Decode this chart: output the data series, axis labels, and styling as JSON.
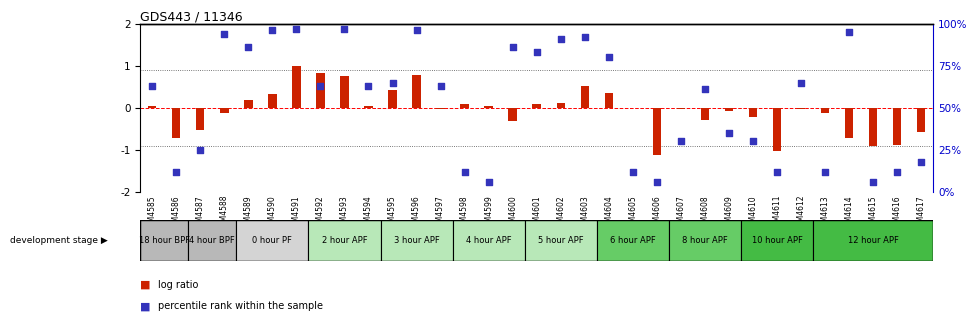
{
  "title": "GDS443 / 11346",
  "samples": [
    "GSM4585",
    "GSM4586",
    "GSM4587",
    "GSM4588",
    "GSM4589",
    "GSM4590",
    "GSM4591",
    "GSM4592",
    "GSM4593",
    "GSM4594",
    "GSM4595",
    "GSM4596",
    "GSM4597",
    "GSM4598",
    "GSM4599",
    "GSM4600",
    "GSM4601",
    "GSM4602",
    "GSM4603",
    "GSM4604",
    "GSM4605",
    "GSM4606",
    "GSM4607",
    "GSM4608",
    "GSM4609",
    "GSM4610",
    "GSM4611",
    "GSM4612",
    "GSM4613",
    "GSM4614",
    "GSM4615",
    "GSM4616",
    "GSM4617"
  ],
  "log_ratio": [
    0.04,
    -0.72,
    -0.52,
    -0.12,
    0.18,
    0.32,
    1.0,
    0.82,
    0.75,
    0.05,
    0.42,
    0.78,
    -0.04,
    0.08,
    0.04,
    -0.32,
    0.08,
    0.12,
    0.52,
    0.35,
    0.0,
    -1.12,
    -0.04,
    -0.28,
    -0.08,
    -0.22,
    -1.02,
    -0.04,
    -0.12,
    -0.72,
    -0.92,
    -0.88,
    -0.58
  ],
  "pct_yval": [
    0.52,
    -1.52,
    -1.0,
    1.76,
    1.44,
    1.84,
    1.88,
    0.52,
    1.88,
    0.52,
    0.6,
    1.84,
    0.52,
    -1.52,
    -1.76,
    1.44,
    1.32,
    1.64,
    1.68,
    1.2,
    -1.52,
    -1.76,
    -0.8,
    0.44,
    -0.6,
    -0.8,
    -1.52,
    0.6,
    -1.52,
    1.8,
    -1.76,
    -1.52,
    -1.28
  ],
  "stage_groups": [
    {
      "label": "18 hour BPF",
      "start": 0,
      "end": 2
    },
    {
      "label": "4 hour BPF",
      "start": 2,
      "end": 4
    },
    {
      "label": "0 hour PF",
      "start": 4,
      "end": 7
    },
    {
      "label": "2 hour APF",
      "start": 7,
      "end": 10
    },
    {
      "label": "3 hour APF",
      "start": 10,
      "end": 13
    },
    {
      "label": "4 hour APF",
      "start": 13,
      "end": 16
    },
    {
      "label": "5 hour APF",
      "start": 16,
      "end": 19
    },
    {
      "label": "6 hour APF",
      "start": 19,
      "end": 22
    },
    {
      "label": "8 hour APF",
      "start": 22,
      "end": 25
    },
    {
      "label": "10 hour APF",
      "start": 25,
      "end": 28
    },
    {
      "label": "12 hour APF",
      "start": 28,
      "end": 33
    }
  ],
  "stage_colors": {
    "18 hour BPF": "#b8b8b8",
    "4 hour BPF": "#b8b8b8",
    "0 hour PF": "#d4d4d4",
    "2 hour APF": "#b8e8b8",
    "3 hour APF": "#b8e8b8",
    "4 hour APF": "#b8e8b8",
    "5 hour APF": "#b8e8b8",
    "6 hour APF": "#66cc66",
    "8 hour APF": "#66cc66",
    "10 hour APF": "#44bb44",
    "12 hour APF": "#44bb44"
  },
  "bar_color": "#cc2200",
  "dot_color": "#3333bb",
  "ylim": [
    -2,
    2
  ],
  "yticks": [
    -2,
    -1,
    0,
    1,
    2
  ],
  "right_yticks_pos": [
    -2,
    -1,
    0,
    1,
    2
  ],
  "right_yticklabels": [
    "0%",
    "25%",
    "50%",
    "75%",
    "100%"
  ]
}
